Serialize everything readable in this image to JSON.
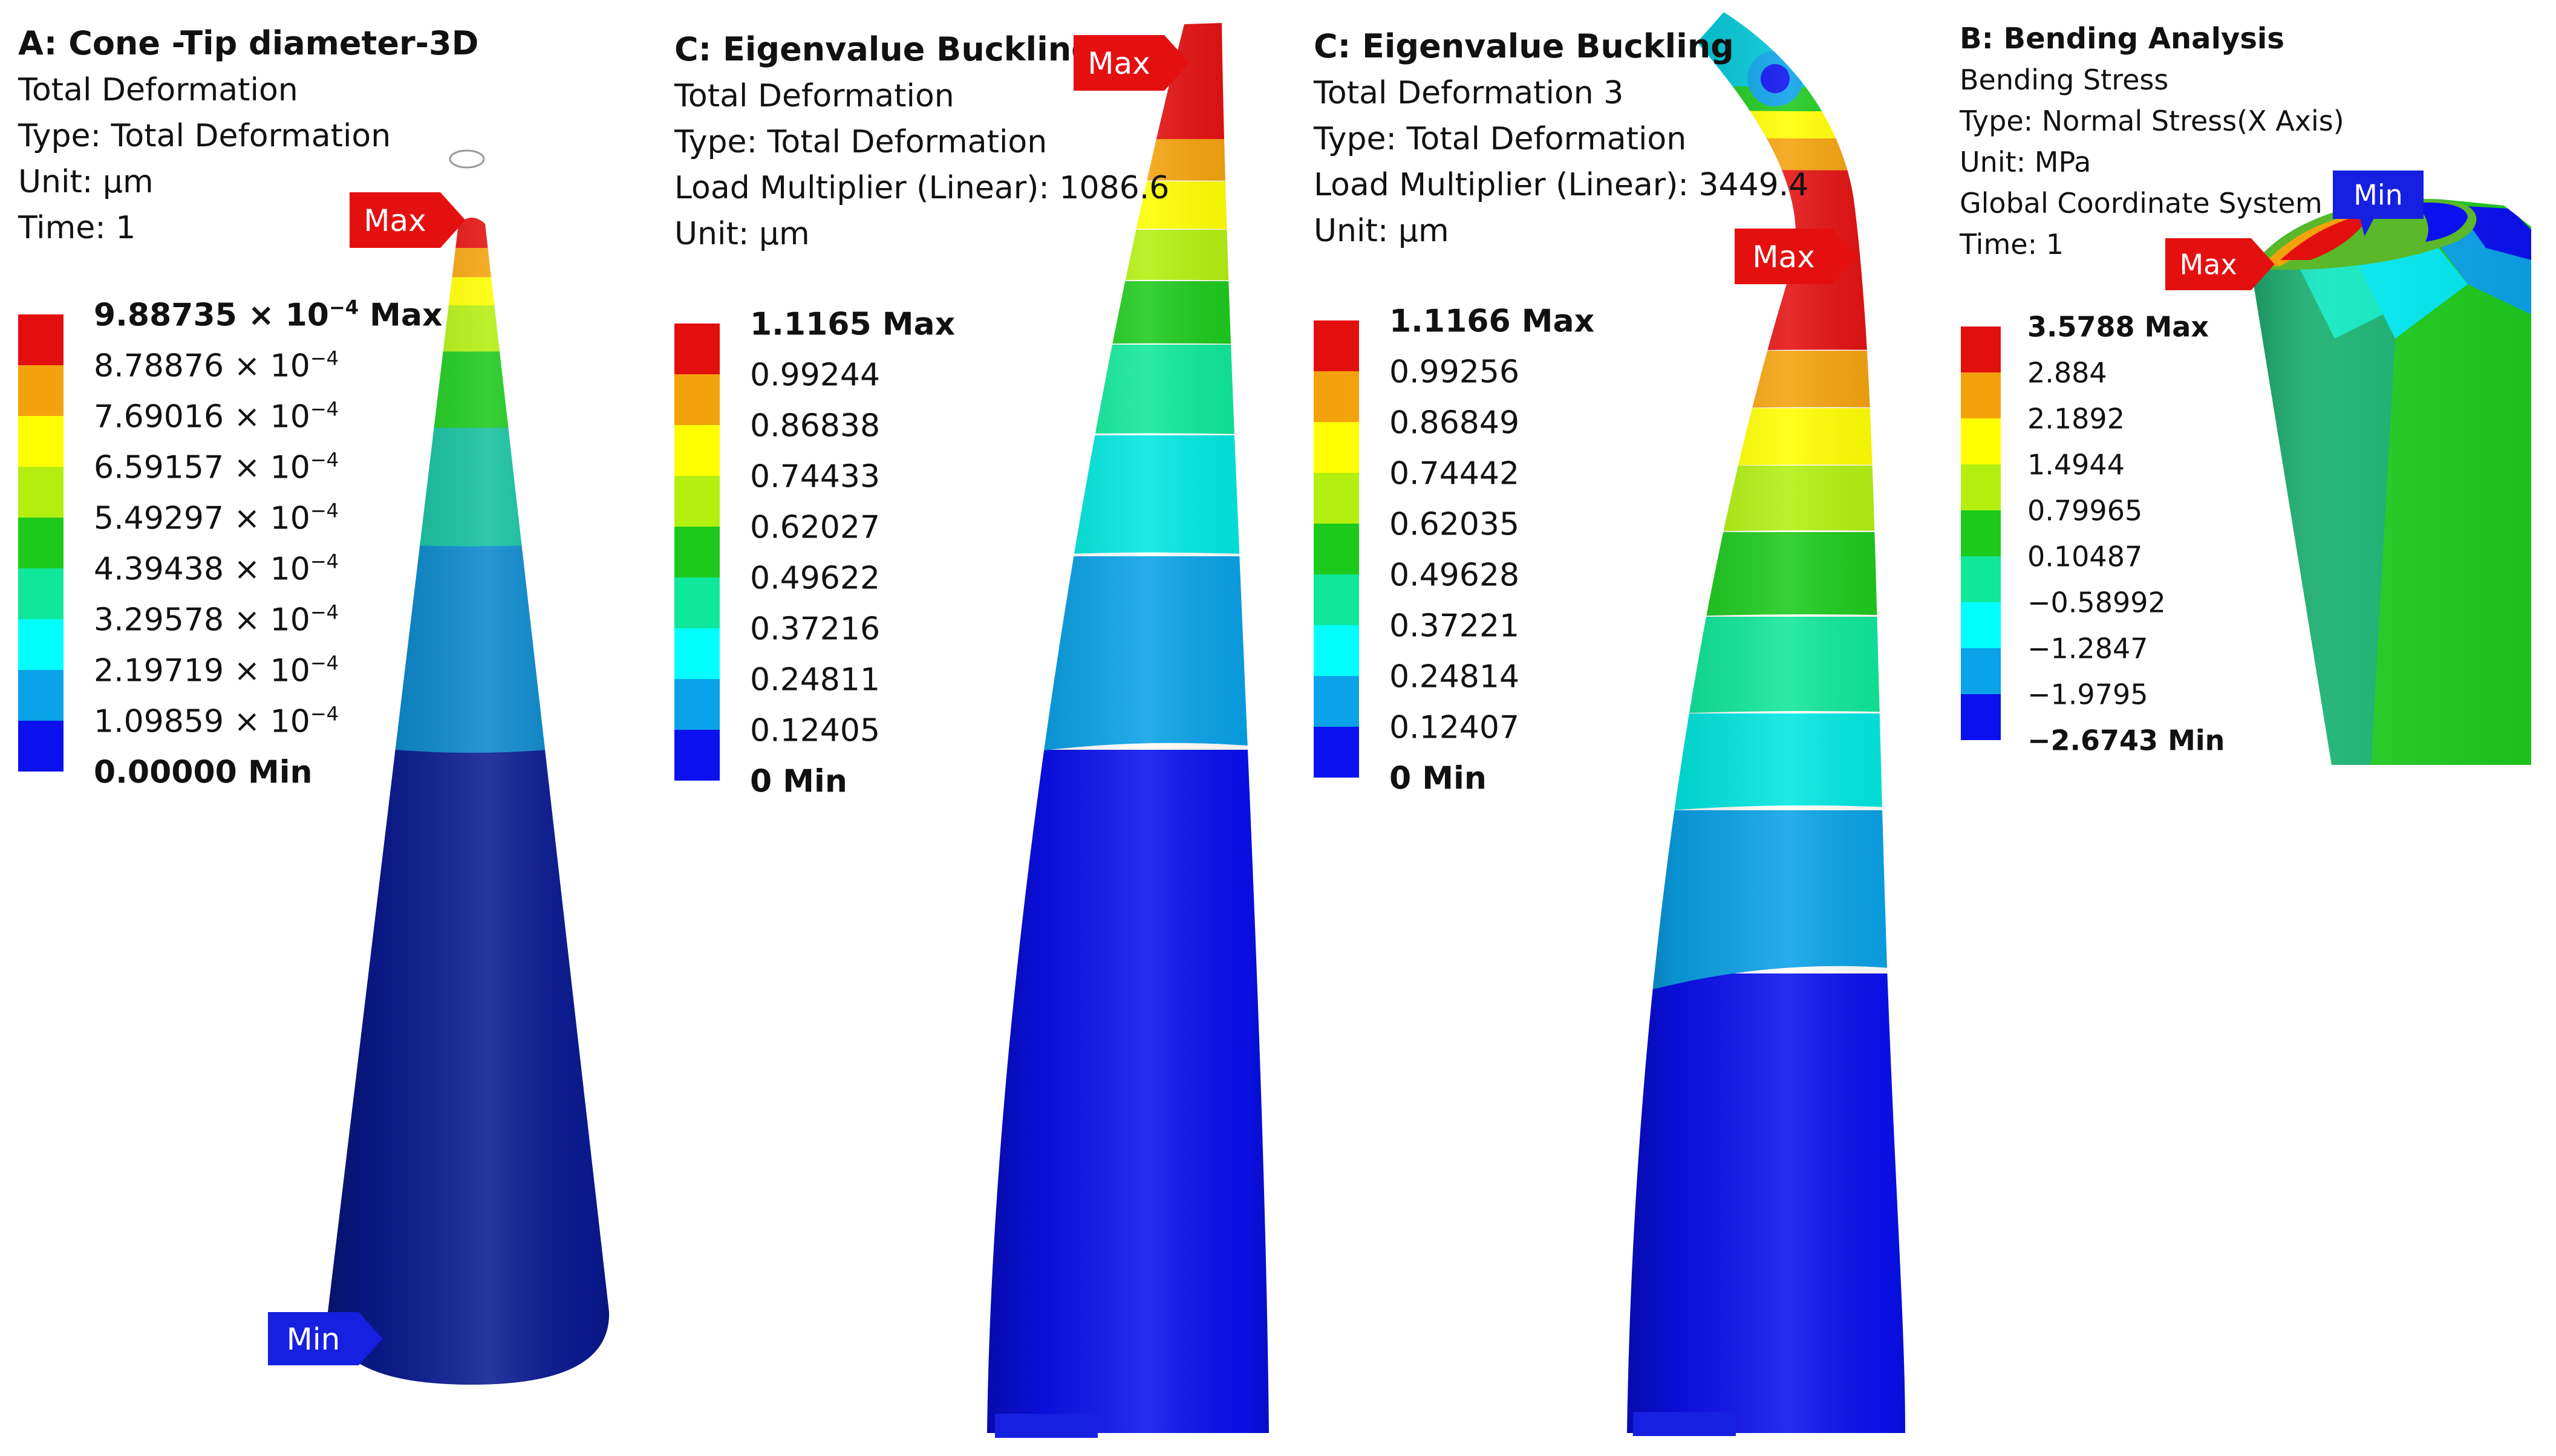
{
  "colors": {
    "red": "#e30f0f",
    "orange": "#f4a20c",
    "yellow": "#ffff00",
    "lime": "#b3f010",
    "green": "#1cca1c",
    "mint": "#0fe89a",
    "cyan": "#00ffff",
    "sky": "#0aa2e8",
    "blue": "#0a10ee",
    "navy": "#0a1a92",
    "tagMax": "#e41010",
    "tagMin": "#1520e0"
  },
  "panels": [
    {
      "title": "A: Cone -Tip diameter-3D",
      "lines": [
        "Total Deformation",
        "Type: Total Deformation",
        "Unit: µm",
        "Time: 1"
      ],
      "legend": [
        {
          "value": "9.88735",
          "exp": " × 10",
          "sup": "−4",
          "suffix": " Max"
        },
        {
          "value": "8.78876",
          "exp": " × 10",
          "sup": "−4",
          "suffix": ""
        },
        {
          "value": "7.69016",
          "exp": " × 10",
          "sup": "−4",
          "suffix": ""
        },
        {
          "value": "6.59157",
          "exp": " × 10",
          "sup": "−4",
          "suffix": ""
        },
        {
          "value": "5.49297",
          "exp": " × 10",
          "sup": "−4",
          "suffix": ""
        },
        {
          "value": "4.39438",
          "exp": " × 10",
          "sup": "−4",
          "suffix": ""
        },
        {
          "value": "3.29578",
          "exp": " × 10",
          "sup": "−4",
          "suffix": ""
        },
        {
          "value": "2.19719",
          "exp": " × 10",
          "sup": "−4",
          "suffix": ""
        },
        {
          "value": "1.09859",
          "exp": " × 10",
          "sup": "−4",
          "suffix": ""
        },
        {
          "value": "0.00000",
          "exp": "",
          "sup": "",
          "suffix": " Min"
        }
      ],
      "tags": {
        "max": "Max",
        "min": "Min"
      }
    },
    {
      "title": "C: Eigenvalue Buckling",
      "lines": [
        "Total Deformation",
        "Type: Total Deformation",
        "Load Multiplier (Linear): 1086.6",
        "Unit: µm"
      ],
      "legend": [
        {
          "value": "1.1165",
          "suffix": " Max"
        },
        {
          "value": "0.99244",
          "suffix": ""
        },
        {
          "value": "0.86838",
          "suffix": ""
        },
        {
          "value": "0.74433",
          "suffix": ""
        },
        {
          "value": "0.62027",
          "suffix": ""
        },
        {
          "value": "0.49622",
          "suffix": ""
        },
        {
          "value": "0.37216",
          "suffix": ""
        },
        {
          "value": "0.24811",
          "suffix": ""
        },
        {
          "value": "0.12405",
          "suffix": ""
        },
        {
          "value": "0",
          "suffix": " Min"
        }
      ],
      "tags": {
        "max": "Max"
      }
    },
    {
      "title": "C: Eigenvalue Buckling",
      "lines": [
        "Total Deformation 3",
        "Type: Total Deformation",
        "Load Multiplier (Linear): 3449.4",
        "Unit: µm"
      ],
      "legend": [
        {
          "value": "1.1166",
          "suffix": " Max"
        },
        {
          "value": "0.99256",
          "suffix": ""
        },
        {
          "value": "0.86849",
          "suffix": ""
        },
        {
          "value": "0.74442",
          "suffix": ""
        },
        {
          "value": "0.62035",
          "suffix": ""
        },
        {
          "value": "0.49628",
          "suffix": ""
        },
        {
          "value": "0.37221",
          "suffix": ""
        },
        {
          "value": "0.24814",
          "suffix": ""
        },
        {
          "value": "0.12407",
          "suffix": ""
        },
        {
          "value": "0",
          "suffix": " Min"
        }
      ],
      "tags": {
        "max": "Max"
      }
    },
    {
      "title": "B: Bending Analysis",
      "lines": [
        "Bending Stress",
        "Type: Normal Stress(X Axis)",
        "Unit: MPa",
        "Global Coordinate System",
        "Time: 1"
      ],
      "legend": [
        {
          "value": "3.5788",
          "suffix": " Max"
        },
        {
          "value": "2.884",
          "suffix": ""
        },
        {
          "value": "2.1892",
          "suffix": ""
        },
        {
          "value": "1.4944",
          "suffix": ""
        },
        {
          "value": "0.79965",
          "suffix": ""
        },
        {
          "value": "0.10487",
          "suffix": ""
        },
        {
          "value": "−0.58992",
          "suffix": ""
        },
        {
          "value": "−1.2847",
          "suffix": ""
        },
        {
          "value": "−1.9795",
          "suffix": ""
        },
        {
          "value": "−2.6743",
          "suffix": " Min"
        }
      ],
      "tags": {
        "max": "Max",
        "min": "Min"
      }
    }
  ]
}
